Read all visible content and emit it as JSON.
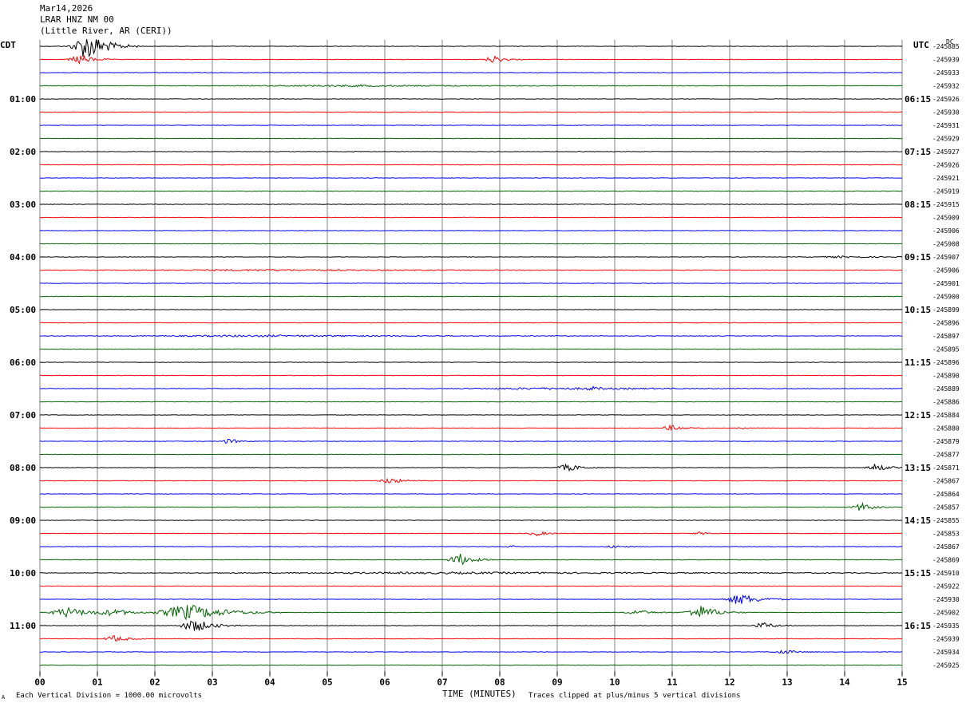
{
  "header": {
    "date": "Mar14,2026",
    "station": "LRAR HNZ NM 00",
    "location": "(Little River, AR (CERI))"
  },
  "left_timezone": "CDT",
  "right_timezone": "UTC",
  "dc_label": "DC",
  "footer": {
    "scale_note": "Each Vertical Division = 1000.00 microvolts",
    "clip_note": "Traces clipped at plus/minus 5 vertical divisions",
    "corner_mark": "A"
  },
  "colors": {
    "trace_cycle": [
      "#000000",
      "#ff0000",
      "#0000ff",
      "#006400"
    ],
    "grid": "#808080"
  },
  "chart_data": {
    "type": "line",
    "title": "",
    "xlabel": "TIME (MINUTES)",
    "ylabel": "",
    "xlim": [
      0,
      15
    ],
    "x_ticks": [
      "00",
      "01",
      "02",
      "03",
      "04",
      "05",
      "06",
      "07",
      "08",
      "09",
      "10",
      "11",
      "12",
      "13",
      "14",
      "15"
    ],
    "left_hour_labels": [
      "01:00",
      "02:00",
      "03:00",
      "04:00",
      "05:00",
      "06:00",
      "07:00",
      "08:00",
      "09:00",
      "10:00",
      "11:00"
    ],
    "right_hour_labels": [
      "06:15",
      "07:15",
      "08:15",
      "09:15",
      "10:15",
      "11:15",
      "12:15",
      "13:15",
      "14:15",
      "15:15",
      "16:15"
    ],
    "trace_minutes": 15,
    "traces_per_hour": 4,
    "dc_offsets": [
      "-245885",
      "-245939",
      "-245933",
      "-245932",
      "-245926",
      "-245930",
      "-245931",
      "-245929",
      "-245927",
      "-245926",
      "-245921",
      "-245919",
      "-245915",
      "-245909",
      "-245906",
      "-245908",
      "-245907",
      "-245906",
      "-245901",
      "-245900",
      "-245899",
      "-245896",
      "-245897",
      "-245895",
      "-245896",
      "-245890",
      "-245889",
      "-245886",
      "-245884",
      "-245880",
      "-245879",
      "-245877",
      "-245871",
      "-245867",
      "-245864",
      "-245857",
      "-245855",
      "-245853",
      "-245867",
      "-245869",
      "-245910",
      "-245922",
      "-245930",
      "-245902",
      "-245935",
      "-245939",
      "-245934",
      "-245925"
    ],
    "events": [
      {
        "trace": 0,
        "minute": 0.85,
        "amp": 5.0,
        "dur": 0.9
      },
      {
        "trace": 1,
        "minute": 0.7,
        "amp": 1.8,
        "dur": 0.6
      },
      {
        "trace": 1,
        "minute": 7.9,
        "amp": 1.5,
        "dur": 0.5
      },
      {
        "trace": 3,
        "minute": 5.5,
        "amp": 0.3,
        "dur": 6.0
      },
      {
        "trace": 8,
        "minute": 5.5,
        "amp": 0.3,
        "dur": 0.2
      },
      {
        "trace": 8,
        "minute": 9.4,
        "amp": 0.25,
        "dur": 0.2
      },
      {
        "trace": 16,
        "minute": 14.0,
        "amp": 0.3,
        "dur": 2.0
      },
      {
        "trace": 17,
        "minute": 4.0,
        "amp": 0.25,
        "dur": 8.0
      },
      {
        "trace": 22,
        "minute": 4.0,
        "amp": 0.3,
        "dur": 8.0
      },
      {
        "trace": 26,
        "minute": 9.0,
        "amp": 0.35,
        "dur": 6.0
      },
      {
        "trace": 26,
        "minute": 9.6,
        "amp": 0.6,
        "dur": 0.3
      },
      {
        "trace": 29,
        "minute": 11.0,
        "amp": 1.0,
        "dur": 0.6
      },
      {
        "trace": 29,
        "minute": 12.2,
        "amp": 0.4,
        "dur": 0.4
      },
      {
        "trace": 30,
        "minute": 3.3,
        "amp": 0.9,
        "dur": 0.5
      },
      {
        "trace": 32,
        "minute": 9.2,
        "amp": 1.3,
        "dur": 0.6
      },
      {
        "trace": 32,
        "minute": 14.55,
        "amp": 1.5,
        "dur": 0.5
      },
      {
        "trace": 33,
        "minute": 6.1,
        "amp": 1.1,
        "dur": 0.6
      },
      {
        "trace": 35,
        "minute": 14.3,
        "amp": 1.6,
        "dur": 0.5
      },
      {
        "trace": 37,
        "minute": 8.65,
        "amp": 0.9,
        "dur": 0.5
      },
      {
        "trace": 37,
        "minute": 11.5,
        "amp": 0.5,
        "dur": 0.5
      },
      {
        "trace": 38,
        "minute": 10.0,
        "amp": 0.4,
        "dur": 0.6
      },
      {
        "trace": 38,
        "minute": 8.2,
        "amp": 0.5,
        "dur": 0.2
      },
      {
        "trace": 39,
        "minute": 7.3,
        "amp": 2.4,
        "dur": 0.6
      },
      {
        "trace": 40,
        "minute": 7.5,
        "amp": 0.3,
        "dur": 15.0
      },
      {
        "trace": 42,
        "minute": 12.2,
        "amp": 2.0,
        "dur": 0.9
      },
      {
        "trace": 43,
        "minute": 0.5,
        "amp": 1.8,
        "dur": 1.0
      },
      {
        "trace": 43,
        "minute": 1.3,
        "amp": 1.0,
        "dur": 1.0
      },
      {
        "trace": 43,
        "minute": 2.6,
        "amp": 3.0,
        "dur": 1.6
      },
      {
        "trace": 43,
        "minute": 10.4,
        "amp": 0.9,
        "dur": 0.7
      },
      {
        "trace": 43,
        "minute": 11.5,
        "amp": 2.5,
        "dur": 0.8
      },
      {
        "trace": 44,
        "minute": 2.7,
        "amp": 2.4,
        "dur": 0.8
      },
      {
        "trace": 44,
        "minute": 12.6,
        "amp": 1.1,
        "dur": 0.6
      },
      {
        "trace": 45,
        "minute": 1.3,
        "amp": 1.2,
        "dur": 0.6
      },
      {
        "trace": 46,
        "minute": 12.95,
        "amp": 0.8,
        "dur": 0.6
      }
    ]
  }
}
